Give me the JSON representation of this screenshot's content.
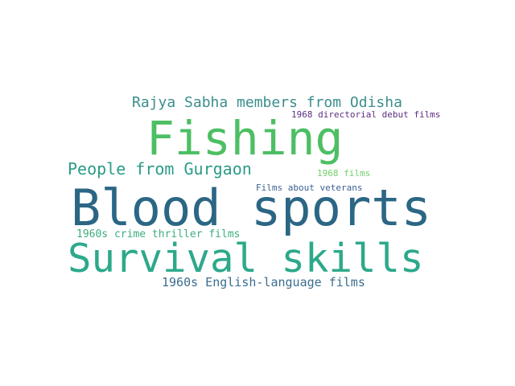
{
  "words": [
    {
      "text": "Rajya Sabha members from Odisha",
      "color": "#3b8e8c"
    },
    {
      "text": "1968 directorial debut films",
      "color": "#5b2e80"
    },
    {
      "text": "Fishing",
      "color": "#4cbf63"
    },
    {
      "text": "People from Gurgaon",
      "color": "#2a9b88"
    },
    {
      "text": "1968 films",
      "color": "#6fcf6a"
    },
    {
      "text": "Films about veterans",
      "color": "#3b5f91"
    },
    {
      "text": "Blood sports",
      "color": "#2b6685"
    },
    {
      "text": "1960s crime thriller films",
      "color": "#3fae7f"
    },
    {
      "text": "Survival skills",
      "color": "#2ca98a"
    },
    {
      "text": "1960s English-language films",
      "color": "#3b6d8f"
    }
  ]
}
